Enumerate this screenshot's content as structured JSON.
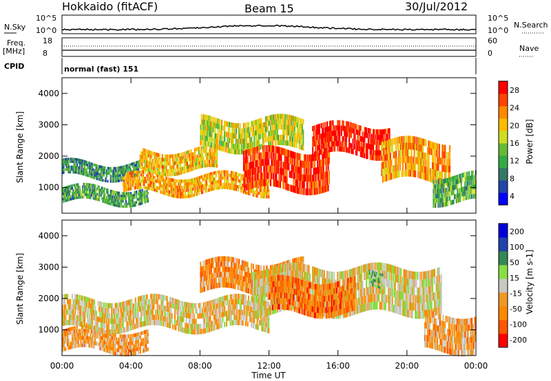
{
  "header": {
    "station": "Hokkaido (fitACF)",
    "beam": "Beam 15",
    "date": "30/Jul/2012"
  },
  "top_panels": {
    "nsky_label": "N.Sky",
    "nsky_ticks": [
      "10^5",
      "10^0"
    ],
    "nsearch_label": "N.Search",
    "nsearch_ticks": [
      "10^5",
      "10^0"
    ],
    "freq_label_1": "Freq.",
    "freq_label_2": "[MHz]",
    "freq_ticks": [
      "18",
      "8"
    ],
    "nave_label": "Nave",
    "nave_ticks": [
      "60",
      "0"
    ],
    "cpid_label": "CPID",
    "cpid_text": "normal (fast) 151"
  },
  "x_axis": {
    "label": "Time UT",
    "ticks": [
      "00:00",
      "04:00",
      "08:00",
      "12:00",
      "16:00",
      "20:00",
      "00:00"
    ]
  },
  "chart_data": [
    {
      "type": "heatmap",
      "name": "power",
      "ylabel": "Slant Range [km]",
      "yticks": [
        "4000",
        "3000",
        "2000",
        "1000"
      ],
      "colorbar_label": "Power [dB]",
      "colorbar_ticks": [
        "28",
        "24",
        "20",
        "16",
        "12",
        "8",
        "4"
      ],
      "colors": [
        "#0000ff",
        "#2244aa",
        "#337766",
        "#33aa44",
        "#66bb33",
        "#ccdd22",
        "#ffbb00",
        "#ff8800",
        "#ff4400",
        "#ff0000"
      ],
      "bands": [
        {
          "t_start": 0.0,
          "t_end": 5.0,
          "r_low": 500,
          "r_high": 1000,
          "level": 0.35
        },
        {
          "t_start": 0.0,
          "t_end": 4.5,
          "r_low": 1300,
          "r_high": 1800,
          "level": 0.3
        },
        {
          "t_start": 3.5,
          "t_end": 12.0,
          "r_low": 800,
          "r_high": 1400,
          "level": 0.7
        },
        {
          "t_start": 4.5,
          "t_end": 9.0,
          "r_low": 1500,
          "r_high": 2200,
          "level": 0.65
        },
        {
          "t_start": 8.0,
          "t_end": 14.0,
          "r_low": 2200,
          "r_high": 3200,
          "level": 0.55
        },
        {
          "t_start": 10.5,
          "t_end": 15.5,
          "r_low": 900,
          "r_high": 2200,
          "level": 0.9
        },
        {
          "t_start": 14.5,
          "t_end": 19.0,
          "r_low": 2000,
          "r_high": 3000,
          "level": 0.95
        },
        {
          "t_start": 18.5,
          "t_end": 22.5,
          "r_low": 1200,
          "r_high": 2500,
          "level": 0.7
        },
        {
          "t_start": 21.5,
          "t_end": 24.0,
          "r_low": 500,
          "r_high": 1400,
          "level": 0.4
        }
      ]
    },
    {
      "type": "heatmap",
      "name": "velocity",
      "ylabel": "Slant Range [km]",
      "yticks": [
        "4000",
        "3000",
        "2000",
        "1000"
      ],
      "colorbar_label": "Velocity [m s-1]",
      "colorbar_ticks": [
        "200",
        "100",
        "50",
        "15",
        "-15",
        "-50",
        "-100",
        "-200"
      ],
      "colors": [
        "#ff0000",
        "#ff5500",
        "#ff8800",
        "#ee9922",
        "#c8c8c0",
        "#88dd44",
        "#338855",
        "#2244aa",
        "#0000dd"
      ],
      "bands": [
        {
          "t_start": 0.0,
          "t_end": 5.0,
          "r_low": 300,
          "r_high": 1000,
          "level": 0.35
        },
        {
          "t_start": 0.0,
          "t_end": 12.0,
          "r_low": 1000,
          "r_high": 2000,
          "level": 0.45
        },
        {
          "t_start": 8.0,
          "t_end": 14.0,
          "r_low": 2200,
          "r_high": 3200,
          "level": 0.3
        },
        {
          "t_start": 11.0,
          "t_end": 22.0,
          "r_low": 1500,
          "r_high": 3000,
          "level": 0.48
        },
        {
          "t_start": 12.0,
          "t_end": 17.0,
          "r_low": 1500,
          "r_high": 2600,
          "level": 0.25
        },
        {
          "t_start": 17.8,
          "t_end": 18.6,
          "r_low": 2400,
          "r_high": 2900,
          "level": 0.6
        },
        {
          "t_start": 21.0,
          "t_end": 24.0,
          "r_low": 300,
          "r_high": 1500,
          "level": 0.35
        }
      ]
    }
  ],
  "colors": {
    "frame": "#000000",
    "background": "#ffffff"
  }
}
